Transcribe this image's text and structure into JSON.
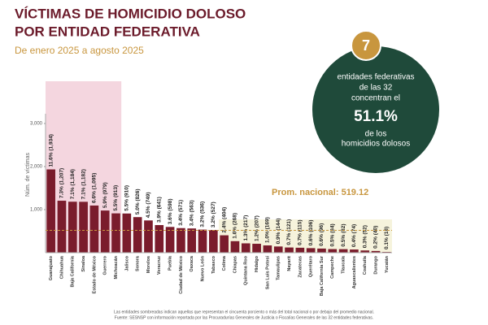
{
  "chart_data": {
    "type": "bar",
    "title": [
      "VÍCTIMAS DE HOMICIDIO DOLOSO",
      "POR ENTIDAD FEDERATIVA"
    ],
    "subtitle": "De enero 2025 a agosto 2025",
    "y_label": "Núm. de víctimas",
    "color": "#7a1c2c",
    "categories": [
      "Guanajuato",
      "Chihuahua",
      "Baja California",
      "Sinaloa",
      "Estado de México",
      "Guerrero",
      "Michoacán",
      "Jalisco",
      "Sonora",
      "Morelos",
      "Veracruz",
      "Puebla",
      "Ciudad de México",
      "Oaxaca",
      "Nuevo León",
      "Tabasco",
      "Colima",
      "Chiapas",
      "Quintana Roo",
      "Hidalgo",
      "San Luis Potosí",
      "Tamaulipas",
      "Nayarit",
      "Zacatecas",
      "Querétaro",
      "Baja California Sur",
      "Campeche",
      "Tlaxcala",
      "Aguascalientes",
      "Coahuila",
      "Durango",
      "Yucatán"
    ],
    "values": [
      1934,
      1207,
      1184,
      1182,
      1095,
      979,
      913,
      910,
      826,
      749,
      641,
      598,
      571,
      563,
      536,
      527,
      404,
      268,
      217,
      207,
      169,
      144,
      121,
      115,
      106,
      96,
      84,
      82,
      74,
      52,
      40,
      18
    ],
    "value_labels": [
      "11.6% (1,934)",
      "7.3% (1,207)",
      "7.1% (1,184)",
      "7.1% (1,182)",
      "6.6% (1,095)",
      "5.9% (979)",
      "5.5% (913)",
      "5.5% (910)",
      "5.0% (826)",
      "4.5% (749)",
      "3.9% (641)",
      "3.6% (598)",
      "3.4% (571)",
      "3.4% (563)",
      "3.2% (536)",
      "3.2% (527)",
      "2.4% (404)",
      "1.6% (268)",
      "1.3% (217)",
      "1.2% (207)",
      "1.0% (169)",
      "0.9% (144)",
      "0.7% (121)",
      "0.7% (115)",
      "0.6% (106)",
      "0.6% (96)",
      "0.5% (84)",
      "0.5% (82)",
      "0.4% (74)",
      "0.3% (52)",
      "0.2% (40)",
      "0.1% (18)"
    ],
    "ylim": [
      0,
      3000
    ],
    "yticks": [
      {
        "value": 1000,
        "label": "1,000"
      },
      {
        "value": 2000,
        "label": "2,000"
      },
      {
        "value": 3000,
        "label": "3,000"
      }
    ],
    "average": {
      "value": 519.12,
      "label": "Prom. nacional: 519.12"
    },
    "callout": {
      "number": 7,
      "lines": [
        "entidades federativas",
        "de las 32",
        "concentran el",
        "51.1%",
        "de los",
        "homicidios dolosos"
      ]
    },
    "notes": [
      "Las entidades sombreadas indican aquellas que representan el cincuenta porciento o más del total nacional o por debajo del promedio nacional.",
      "Fuente: SESNSP con información reportada por las Procuradurías Generales de Justicia o Fiscalías Generales de las 32 entidades federativas."
    ]
  }
}
